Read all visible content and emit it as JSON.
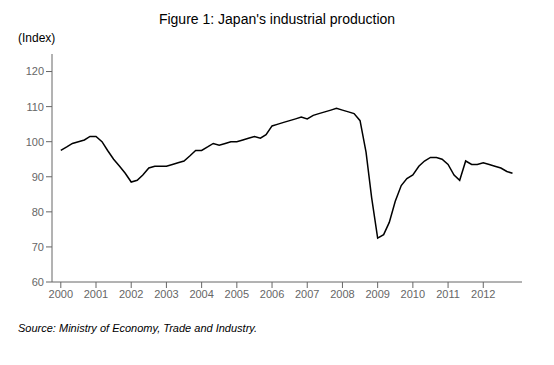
{
  "chart_data": {
    "type": "line",
    "title": "Figure 1: Japan's industrial production",
    "ylabel": "(Index)",
    "source": "Source: Ministry of Economy, Trade and Industry.",
    "color": "#000000",
    "grid": false,
    "xlim": [
      1999.75,
      2013.1
    ],
    "xticks": [
      2000,
      2001,
      2002,
      2003,
      2004,
      2005,
      2006,
      2007,
      2008,
      2009,
      2010,
      2011,
      2012
    ],
    "ylim": [
      60,
      125
    ],
    "yticks": [
      60,
      70,
      80,
      90,
      100,
      110,
      120
    ],
    "x": [
      2000.0,
      2000.17,
      2000.33,
      2000.5,
      2000.67,
      2000.83,
      2001.0,
      2001.17,
      2001.33,
      2001.5,
      2001.67,
      2001.83,
      2002.0,
      2002.17,
      2002.33,
      2002.5,
      2002.67,
      2002.83,
      2003.0,
      2003.17,
      2003.33,
      2003.5,
      2003.67,
      2003.83,
      2004.0,
      2004.17,
      2004.33,
      2004.5,
      2004.67,
      2004.83,
      2005.0,
      2005.17,
      2005.33,
      2005.5,
      2005.67,
      2005.83,
      2006.0,
      2006.17,
      2006.33,
      2006.5,
      2006.67,
      2006.83,
      2007.0,
      2007.17,
      2007.33,
      2007.5,
      2007.67,
      2007.83,
      2008.0,
      2008.17,
      2008.33,
      2008.5,
      2008.67,
      2008.83,
      2009.0,
      2009.17,
      2009.33,
      2009.5,
      2009.67,
      2009.83,
      2010.0,
      2010.17,
      2010.33,
      2010.5,
      2010.67,
      2010.83,
      2011.0,
      2011.17,
      2011.33,
      2011.5,
      2011.67,
      2011.83,
      2012.0,
      2012.17,
      2012.33,
      2012.5,
      2012.67,
      2012.83
    ],
    "values": [
      97.5,
      98.5,
      99.5,
      100.0,
      100.5,
      101.5,
      101.5,
      100.0,
      97.5,
      95.0,
      93.0,
      91.0,
      88.5,
      89.0,
      90.5,
      92.5,
      93.0,
      93.0,
      93.0,
      93.5,
      94.0,
      94.5,
      96.0,
      97.5,
      97.5,
      98.5,
      99.5,
      99.0,
      99.5,
      100.0,
      100.0,
      100.5,
      101.0,
      101.5,
      101.0,
      102.0,
      104.5,
      105.0,
      105.5,
      106.0,
      106.5,
      107.0,
      106.5,
      107.5,
      108.0,
      108.5,
      109.0,
      109.5,
      109.0,
      108.5,
      108.0,
      106.0,
      97.0,
      84.0,
      72.5,
      73.5,
      77.0,
      83.0,
      87.5,
      89.5,
      90.5,
      93.0,
      94.5,
      95.5,
      95.5,
      95.0,
      93.5,
      90.5,
      89.0,
      94.5,
      93.5,
      93.5,
      94.0,
      93.5,
      93.0,
      92.5,
      91.5,
      91.0
    ]
  }
}
